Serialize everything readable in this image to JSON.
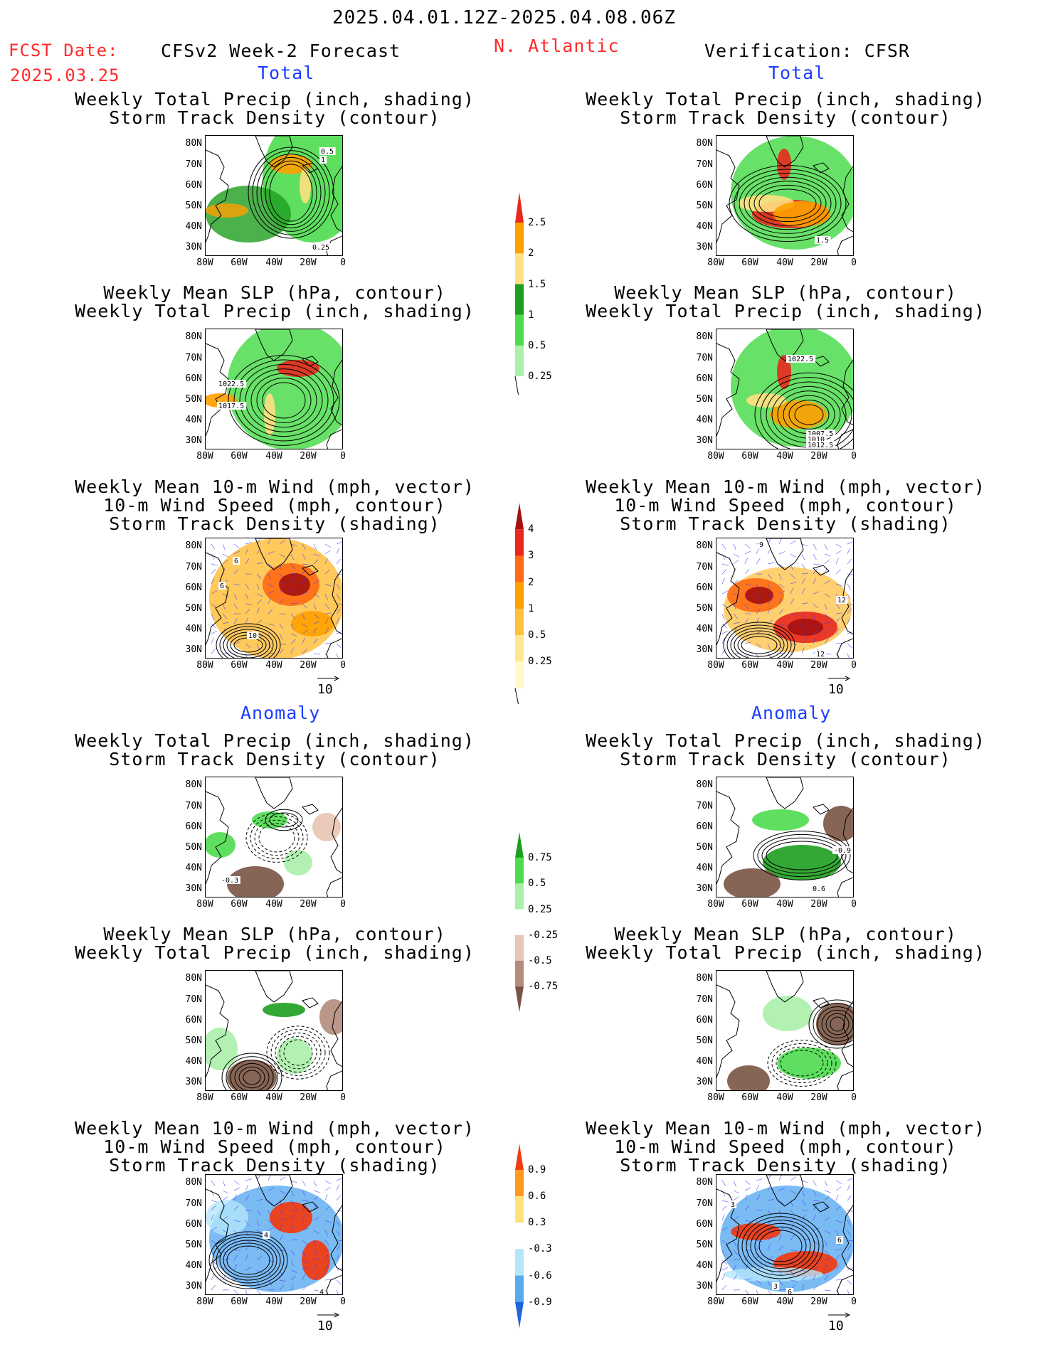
{
  "header": {
    "date_range": "2025.04.01.12Z-2025.04.08.06Z",
    "fcst_label": "FCST Date:",
    "fcst_date": "2025.03.25",
    "forecast_title": "CFSv2 Week-2 Forecast",
    "region": "N. Atlantic",
    "verification_title": "Verification: CFSR"
  },
  "sections": {
    "total": "Total",
    "anomaly": "Anomaly"
  },
  "panel_titles": {
    "precip_storm": [
      "Weekly Total Precip (inch, shading)",
      "Storm Track Density (contour)"
    ],
    "slp_precip": [
      "Weekly Mean SLP (hPa, contour)",
      "Weekly Total Precip (inch, shading)"
    ],
    "wind_storm": [
      "Weekly Mean 10-m Wind (mph, vector)",
      "10-m Wind Speed (mph, contour)",
      "Storm Track Density (shading)"
    ]
  },
  "axes": {
    "lat_ticks": [
      "80N",
      "70N",
      "60N",
      "50N",
      "40N",
      "30N"
    ],
    "lon_ticks": [
      "80W",
      "60W",
      "40W",
      "20W",
      "0"
    ]
  },
  "vector_ref": "10",
  "contour_labels": {
    "fc_total_precip": [
      "0.5",
      "1",
      "0.25"
    ],
    "fc_total_slp": [
      "1022.5",
      "1017.5"
    ],
    "fc_total_wind": [
      "6",
      "6",
      "10"
    ],
    "vf_total_precip": [
      "1.5"
    ],
    "vf_total_slp": [
      "1022.5",
      "1007.5",
      "1010",
      "1012.5"
    ],
    "vf_total_wind": [
      "9",
      "12",
      "12"
    ],
    "fc_anom_precip": [
      "-0.3"
    ],
    "vf_anom_precip": [
      "-0.9",
      "0.6"
    ],
    "fc_anom_wind": [
      "4",
      "4"
    ],
    "vf_anom_wind": [
      "3",
      "6",
      "3",
      "6"
    ]
  },
  "colorbars": {
    "total_precip": {
      "labels": [
        "2.5",
        "2",
        "1.5",
        "1",
        "0.5",
        "0.25"
      ],
      "colors": [
        "#e8281e",
        "#ffa000",
        "#ffe082",
        "#1e9e1e",
        "#4edc4e",
        "#aaf0aa"
      ]
    },
    "total_storm": {
      "labels": [
        "4",
        "3",
        "2",
        "1",
        "0.5",
        "0.25"
      ],
      "colors": [
        "#a50f0f",
        "#e8281e",
        "#ff6a14",
        "#ffa000",
        "#ffc040",
        "#ffe890",
        "#fffac8"
      ]
    },
    "anom_precip": {
      "labels": [
        "0.75",
        "0.5",
        "0.25",
        "-0.25",
        "-0.5",
        "-0.75"
      ],
      "colors": [
        "#1e9e1e",
        "#4edc4e",
        "#aaf0aa",
        "#ffffff",
        "#e8c4b4",
        "#b48c7c",
        "#7a5444"
      ]
    },
    "anom_storm": {
      "labels": [
        "0.9",
        "0.6",
        "0.3",
        "-0.3",
        "-0.6",
        "-0.9"
      ],
      "colors": [
        "#f03c14",
        "#ff9a1e",
        "#ffe27a",
        "#ffffff",
        "#b4e6fa",
        "#5aaaf0",
        "#1e64dc"
      ]
    }
  }
}
